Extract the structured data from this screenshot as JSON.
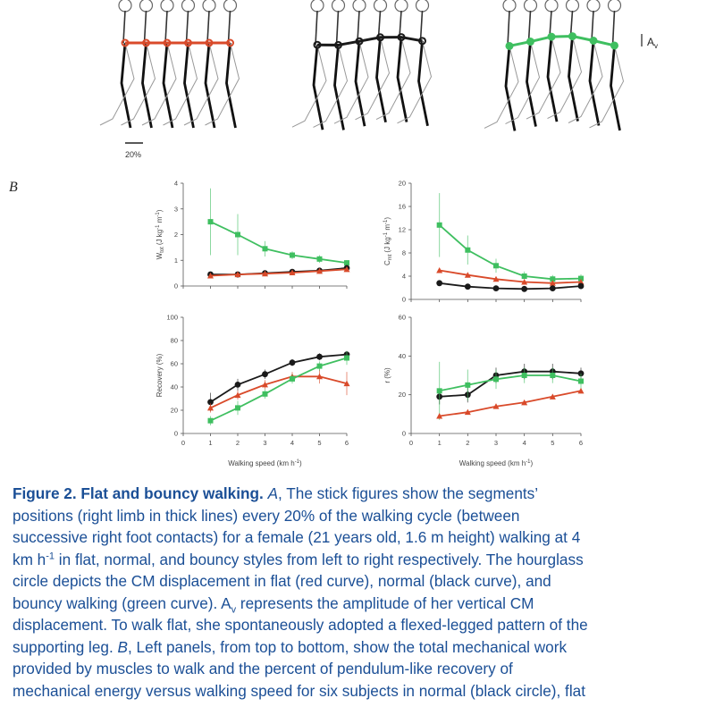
{
  "panel_b_label": "B",
  "scale_bar_label": "20%",
  "amplitude_label": "A",
  "amplitude_subscript": "v",
  "colors": {
    "flat": "#d94a2a",
    "normal": "#1a1a1a",
    "bouncy": "#3fbf60",
    "caption": "#1b4f96"
  },
  "chart_data": [
    {
      "type": "line",
      "panel": "top-left",
      "ylabel_main": "W",
      "ylabel_sub": "tot",
      "ylabel_unit": "(J kg",
      "ylabel_unit_sup": "-1",
      "ylabel_unit_tail": " m",
      "ylabel_unit_sup2": "-1",
      "ylabel_close": ")",
      "xlim": [
        0,
        6
      ],
      "ylim": [
        0,
        4
      ],
      "yticks": [
        "0",
        "1",
        "2",
        "3",
        "4"
      ],
      "x": [
        1,
        2,
        3,
        4,
        5,
        6
      ],
      "series": [
        {
          "color": "green",
          "values": [
            2.5,
            2.0,
            1.45,
            1.2,
            1.05,
            0.9
          ],
          "err": [
            1.3,
            0.8,
            0.3,
            0.15,
            0.15,
            0.1
          ]
        },
        {
          "color": "black",
          "values": [
            0.45,
            0.45,
            0.5,
            0.55,
            0.6,
            0.7
          ],
          "err": [
            0,
            0,
            0,
            0,
            0,
            0
          ]
        },
        {
          "color": "red",
          "values": [
            0.4,
            0.45,
            0.48,
            0.52,
            0.58,
            0.65
          ],
          "err": [
            0,
            0,
            0,
            0,
            0,
            0
          ]
        }
      ]
    },
    {
      "type": "line",
      "panel": "top-right",
      "ylabel_main": "C",
      "ylabel_sub": "mt",
      "ylabel_unit": "(J kg",
      "ylabel_unit_sup": "-1",
      "ylabel_unit_tail": " m",
      "ylabel_unit_sup2": "-1",
      "ylabel_close": ")",
      "xlim": [
        0,
        6
      ],
      "ylim": [
        0,
        20
      ],
      "yticks": [
        "0",
        "4",
        "8",
        "12",
        "16",
        "20"
      ],
      "x": [
        1,
        2,
        3,
        4,
        5,
        6
      ],
      "series": [
        {
          "color": "green",
          "values": [
            12.8,
            8.5,
            5.8,
            4.0,
            3.5,
            3.6
          ],
          "err": [
            5.5,
            2.5,
            1.2,
            0.8,
            0.7,
            0.7
          ]
        },
        {
          "color": "red",
          "values": [
            5.0,
            4.2,
            3.5,
            3.0,
            2.8,
            3.0
          ],
          "err": [
            0,
            0,
            0,
            0,
            0,
            0
          ]
        },
        {
          "color": "black",
          "values": [
            2.8,
            2.2,
            1.9,
            1.8,
            1.9,
            2.3
          ],
          "err": [
            0,
            0,
            0,
            0,
            0,
            0
          ]
        }
      ]
    },
    {
      "type": "line",
      "panel": "bottom-left",
      "ylabel_main": "Recovery (%)",
      "xlabel": "Walking speed (km h",
      "xlabel_sup": "-1",
      "xlabel_close": ")",
      "xlim": [
        0,
        6
      ],
      "ylim": [
        0,
        100
      ],
      "yticks": [
        "0",
        "20",
        "40",
        "60",
        "80",
        "100"
      ],
      "xticks": [
        "0",
        "1",
        "2",
        "3",
        "4",
        "5",
        "6"
      ],
      "x": [
        1,
        2,
        3,
        4,
        5,
        6
      ],
      "series": [
        {
          "color": "black",
          "values": [
            27,
            42,
            51,
            61,
            66,
            68
          ],
          "err": [
            8,
            5,
            4,
            3,
            3,
            3
          ]
        },
        {
          "color": "red",
          "values": [
            22,
            33,
            42,
            49,
            49,
            43
          ],
          "err": [
            4,
            4,
            4,
            4,
            6,
            10
          ]
        },
        {
          "color": "green",
          "values": [
            11,
            22,
            34,
            47,
            58,
            65
          ],
          "err": [
            4,
            6,
            4,
            4,
            4,
            6
          ]
        }
      ]
    },
    {
      "type": "line",
      "panel": "bottom-right",
      "ylabel_main": "r (%)",
      "xlabel": "Walking speed (km h",
      "xlabel_sup": "-1",
      "xlabel_close": ")",
      "xlim": [
        0,
        6
      ],
      "ylim": [
        0,
        60
      ],
      "yticks": [
        "0",
        "20",
        "40",
        "60"
      ],
      "xticks": [
        "0",
        "1",
        "2",
        "3",
        "4",
        "5",
        "6"
      ],
      "x": [
        1,
        2,
        3,
        4,
        5,
        6
      ],
      "series": [
        {
          "color": "black",
          "values": [
            19,
            20,
            30,
            32,
            32,
            31
          ],
          "err": [
            4,
            4,
            4,
            4,
            4,
            3
          ]
        },
        {
          "color": "green",
          "values": [
            22,
            25,
            28,
            30,
            30,
            27
          ],
          "err": [
            15,
            8,
            5,
            4,
            4,
            4
          ]
        },
        {
          "color": "red",
          "values": [
            9,
            11,
            14,
            16,
            19,
            22
          ],
          "err": [
            0,
            0,
            0,
            0,
            0,
            0
          ]
        }
      ]
    }
  ],
  "caption": {
    "head": "Figure 2. Flat and bouncy walking",
    "a_letter": "A",
    "l1": ", The stick figures show the segments’",
    "l2": "positions (right limb in thick lines) every 20% of the walking cycle (between",
    "l3": "successive right foot contacts) for a female (21 years old, 1.6 m height) walking at 4",
    "l4a": "km h",
    "l4sup": "-1",
    "l4b": " in flat, normal, and bouncy styles from left to right respectively. The hourglass",
    "l5": "circle depicts the CM displacement in flat (red curve), normal (black curve), and",
    "l6a": "bouncy walking (green curve). A",
    "l6sub": "v",
    "l6b": " represents the amplitude of her vertical CM",
    "l7": "displacement. To walk flat, she spontaneously adopted a flexed-legged pattern of the",
    "l8a": "supporting leg. ",
    "l8b": "B",
    "l8c": ", Left panels, from top to bottom, show the total mechanical work",
    "l9": "provided by muscles to walk and the percent of pendulum-like recovery of",
    "l10": "mechanical energy versus walking speed for six subjects in normal (black circle), flat"
  }
}
